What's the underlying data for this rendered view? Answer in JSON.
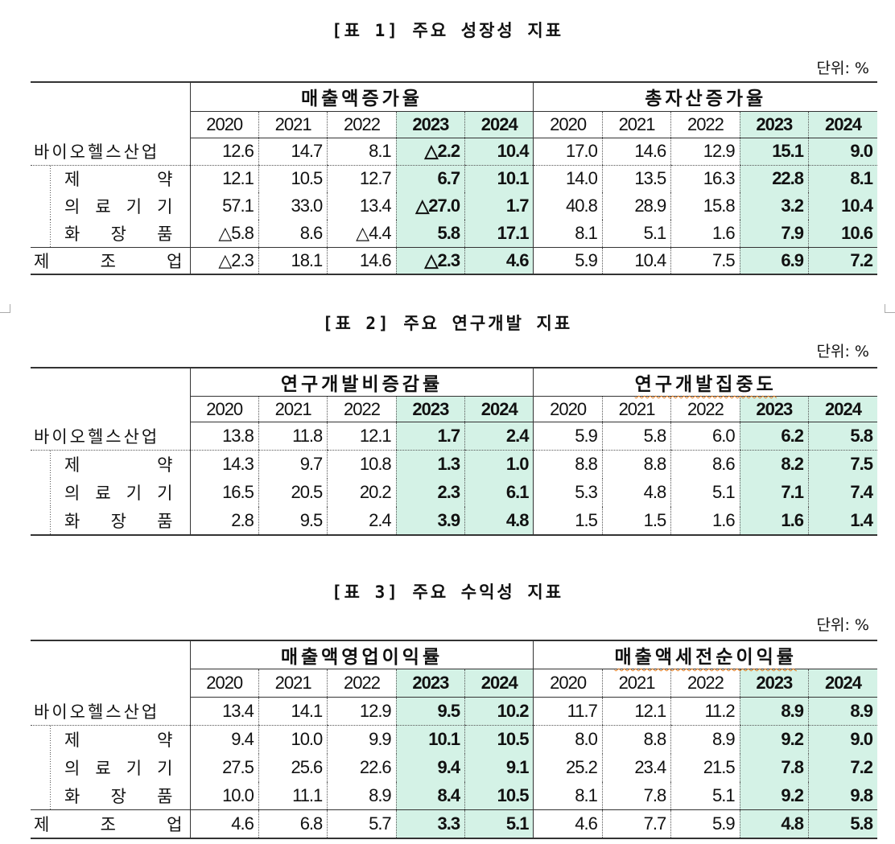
{
  "tables": [
    {
      "title": "[표 1] 주요 성장성 지표",
      "unit": "단위: %",
      "groups": [
        "매출액증가율",
        "총자산증가율"
      ],
      "years": [
        "2020",
        "2021",
        "2022",
        "2023",
        "2024",
        "2020",
        "2021",
        "2022",
        "2023",
        "2024"
      ],
      "highlight_color": "#d4f2e6",
      "rows": [
        {
          "label": "바이오헬스산업",
          "values": [
            "12.6",
            "14.7",
            "8.1",
            "△2.2",
            "10.4",
            "17.0",
            "14.6",
            "12.9",
            "15.1",
            "9.0"
          ]
        },
        {
          "label": "제 약",
          "sub": true,
          "values": [
            "12.1",
            "10.5",
            "12.7",
            "6.7",
            "10.1",
            "14.0",
            "13.5",
            "16.3",
            "22.8",
            "8.1"
          ]
        },
        {
          "label": "의 료 기 기",
          "sub": true,
          "values": [
            "57.1",
            "33.0",
            "13.4",
            "△27.0",
            "1.7",
            "40.8",
            "28.9",
            "15.8",
            "3.2",
            "10.4"
          ]
        },
        {
          "label": "화 장 품",
          "sub": true,
          "values": [
            "△5.8",
            "8.6",
            "△4.4",
            "5.8",
            "17.1",
            "8.1",
            "5.1",
            "1.6",
            "7.9",
            "10.6"
          ]
        },
        {
          "label": "제 조 업",
          "values": [
            "△2.3",
            "18.1",
            "14.6",
            "△2.3",
            "4.6",
            "5.9",
            "10.4",
            "7.5",
            "6.9",
            "7.2"
          ]
        }
      ]
    },
    {
      "title": "[표 2] 주요 연구개발 지표",
      "unit": "단위: %",
      "groups": [
        "연구개발비증감률",
        "연구개발집중도"
      ],
      "years": [
        "2020",
        "2021",
        "2022",
        "2023",
        "2024",
        "2020",
        "2021",
        "2022",
        "2023",
        "2024"
      ],
      "highlight_color": "#d4f2e6",
      "rows": [
        {
          "label": "바이오헬스산업",
          "values": [
            "13.8",
            "11.8",
            "12.1",
            "1.7",
            "2.4",
            "5.9",
            "5.8",
            "6.0",
            "6.2",
            "5.8"
          ]
        },
        {
          "label": "제 약",
          "sub": true,
          "values": [
            "14.3",
            "9.7",
            "10.8",
            "1.3",
            "1.0",
            "8.8",
            "8.8",
            "8.6",
            "8.2",
            "7.5"
          ]
        },
        {
          "label": "의 료 기 기",
          "sub": true,
          "values": [
            "16.5",
            "20.5",
            "20.2",
            "2.3",
            "6.1",
            "5.3",
            "4.8",
            "5.1",
            "7.1",
            "7.4"
          ]
        },
        {
          "label": "화 장 품",
          "sub": true,
          "values": [
            "2.8",
            "9.5",
            "2.4",
            "3.9",
            "4.8",
            "1.5",
            "1.5",
            "1.6",
            "1.6",
            "1.4"
          ]
        }
      ]
    },
    {
      "title": "[표 3] 주요 수익성 지표",
      "unit": "단위: %",
      "groups": [
        "매출액영업이익률",
        "매출액세전순이익률"
      ],
      "years": [
        "2020",
        "2021",
        "2022",
        "2023",
        "2024",
        "2020",
        "2021",
        "2022",
        "2023",
        "2024"
      ],
      "highlight_color": "#d4f2e6",
      "rows": [
        {
          "label": "바이오헬스산업",
          "values": [
            "13.4",
            "14.1",
            "12.9",
            "9.5",
            "10.2",
            "11.7",
            "12.1",
            "11.2",
            "8.9",
            "8.9"
          ]
        },
        {
          "label": "제 약",
          "sub": true,
          "values": [
            "9.4",
            "10.0",
            "9.9",
            "10.1",
            "10.5",
            "8.0",
            "8.8",
            "8.9",
            "9.2",
            "9.0"
          ]
        },
        {
          "label": "의 료 기 기",
          "sub": true,
          "values": [
            "27.5",
            "25.6",
            "22.6",
            "9.4",
            "9.1",
            "25.2",
            "23.4",
            "21.5",
            "7.8",
            "7.2"
          ]
        },
        {
          "label": "화 장 품",
          "sub": true,
          "values": [
            "10.0",
            "11.1",
            "8.9",
            "8.4",
            "10.5",
            "8.1",
            "7.8",
            "5.1",
            "9.2",
            "9.8"
          ]
        },
        {
          "label": "제 조 업",
          "values": [
            "4.6",
            "6.8",
            "5.7",
            "3.3",
            "5.1",
            "4.6",
            "7.7",
            "5.9",
            "4.8",
            "5.8"
          ]
        }
      ]
    }
  ]
}
